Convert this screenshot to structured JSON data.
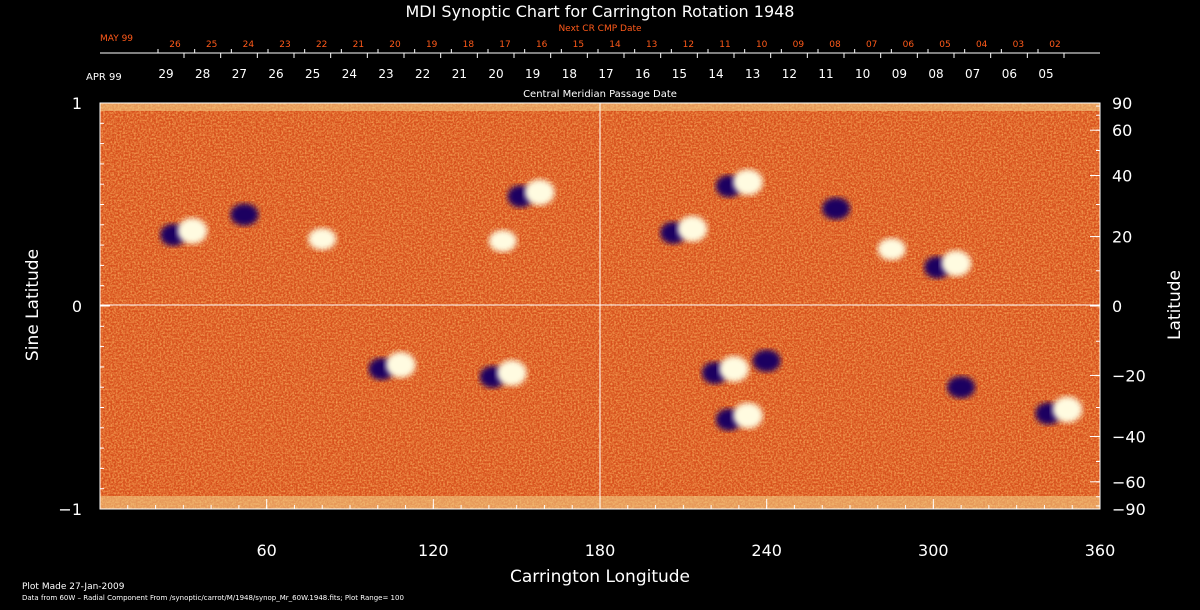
{
  "chart_data": {
    "type": "heatmap",
    "title": "MDI Synoptic Chart for Carrington Rotation 1948",
    "xlabel": "Carrington Longitude",
    "ylabel_left": "Sine Latitude",
    "ylabel_right": "Latitude",
    "xlim": [
      0,
      360
    ],
    "ylim": [
      -1,
      1
    ],
    "x_ticks": [
      60,
      120,
      180,
      240,
      300,
      360
    ],
    "y_ticks_left": [
      {
        "value": 1,
        "label": "1"
      },
      {
        "value": 0,
        "label": "0"
      },
      {
        "value": -1,
        "label": "−1"
      }
    ],
    "y_ticks_right": [
      {
        "value": 90,
        "label": "90"
      },
      {
        "value": 60,
        "label": "60"
      },
      {
        "value": 40,
        "label": "40"
      },
      {
        "value": 20,
        "label": "20"
      },
      {
        "value": 0,
        "label": "0"
      },
      {
        "value": -20,
        "label": "−20"
      },
      {
        "value": -40,
        "label": "−40"
      },
      {
        "value": -60,
        "label": "−60"
      },
      {
        "value": -90,
        "label": "−90"
      }
    ],
    "top_axis_next": {
      "caption": "Next CR CMP Date",
      "month": "MAY 99",
      "labels": [
        "26",
        "25",
        "24",
        "23",
        "22",
        "21",
        "20",
        "19",
        "18",
        "17",
        "16",
        "15",
        "14",
        "13",
        "12",
        "11",
        "10",
        "09",
        "08",
        "07",
        "06",
        "05",
        "04",
        "03",
        "02"
      ]
    },
    "top_axis_current": {
      "caption": "Central Meridian Passage Date",
      "month": "APR 99",
      "labels": [
        "29",
        "28",
        "27",
        "26",
        "25",
        "24",
        "23",
        "22",
        "21",
        "20",
        "19",
        "18",
        "17",
        "16",
        "15",
        "14",
        "13",
        "12",
        "11",
        "10",
        "09",
        "08",
        "07",
        "06",
        "05"
      ]
    },
    "active_regions": [
      {
        "lon": 30,
        "sinlat": 0.36,
        "polarity": "bipolar"
      },
      {
        "lon": 52,
        "sinlat": 0.45,
        "polarity": "negative"
      },
      {
        "lon": 80,
        "sinlat": 0.33,
        "polarity": "positive"
      },
      {
        "lon": 145,
        "sinlat": 0.32,
        "polarity": "positive"
      },
      {
        "lon": 155,
        "sinlat": 0.55,
        "polarity": "bipolar"
      },
      {
        "lon": 210,
        "sinlat": 0.37,
        "polarity": "bipolar"
      },
      {
        "lon": 230,
        "sinlat": 0.6,
        "polarity": "bipolar"
      },
      {
        "lon": 265,
        "sinlat": 0.48,
        "polarity": "negative"
      },
      {
        "lon": 285,
        "sinlat": 0.28,
        "polarity": "positive"
      },
      {
        "lon": 305,
        "sinlat": 0.2,
        "polarity": "bipolar"
      },
      {
        "lon": 105,
        "sinlat": -0.3,
        "polarity": "bipolar"
      },
      {
        "lon": 145,
        "sinlat": -0.34,
        "polarity": "bipolar"
      },
      {
        "lon": 225,
        "sinlat": -0.32,
        "polarity": "bipolar"
      },
      {
        "lon": 240,
        "sinlat": -0.27,
        "polarity": "negative"
      },
      {
        "lon": 230,
        "sinlat": -0.55,
        "polarity": "bipolar"
      },
      {
        "lon": 310,
        "sinlat": -0.4,
        "polarity": "negative"
      },
      {
        "lon": 345,
        "sinlat": -0.52,
        "polarity": "bipolar"
      }
    ],
    "colors": {
      "background": "#d9531e",
      "positive": "#fffbe0",
      "negative": "#1a0660",
      "grid": "#ffffff"
    },
    "grid": true
  },
  "footer": {
    "plot_made": "Plot Made 27-Jan-2009",
    "data_source": "Data from 60W – Radial Component From /synoptic/carrot/M/1948/synop_Mr_60W.1948.fits; Plot Range= 100"
  }
}
